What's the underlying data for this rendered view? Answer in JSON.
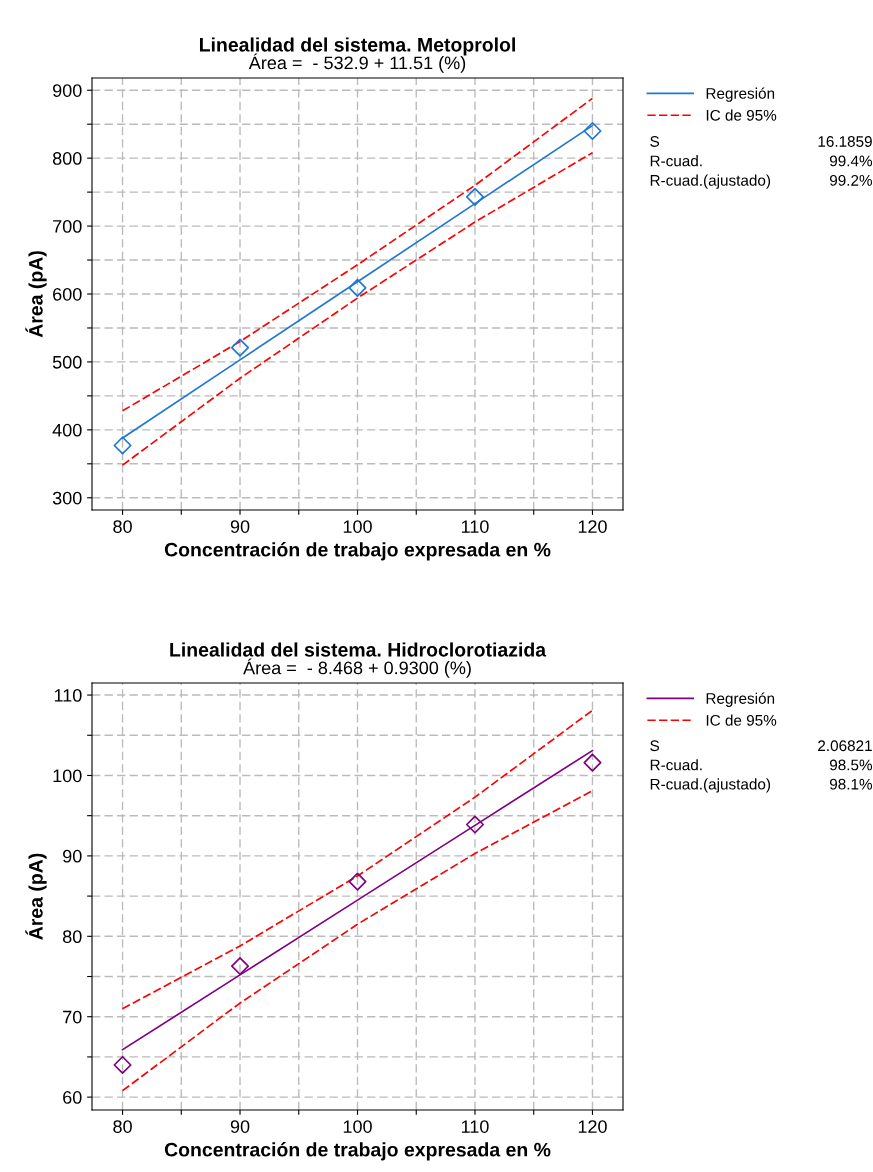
{
  "chart_data": [
    {
      "type": "line",
      "title": "Linealidad del sistema. Metoprolol",
      "subtitle": "Área =  - 532.9 + 11.51 (%)",
      "xlabel": "Concentración de trabajo expresada en %",
      "ylabel": "Área (pA)",
      "x": [
        80,
        90,
        100,
        110,
        120
      ],
      "series": [
        {
          "type": "scatter",
          "marker": "diamond",
          "color": "#1f77d0",
          "values": [
            377,
            521,
            609,
            743,
            840
          ]
        },
        {
          "name": "Regresión",
          "color": "#1f77d0",
          "line_style": "solid",
          "values": [
            388,
            503,
            618,
            733,
            848
          ]
        },
        {
          "name": "IC de 95%",
          "color": "#ff0000",
          "line_style": "dashed",
          "values": [
            428,
            530,
            643,
            760,
            888
          ]
        },
        {
          "color": "#ff0000",
          "line_style": "dashed",
          "values": [
            348,
            476,
            594,
            706,
            808
          ]
        }
      ],
      "xlim": [
        77.4,
        122.6
      ],
      "ylim": [
        282,
        918
      ],
      "xticks": [
        80,
        {
          "value": 85,
          "label": null
        },
        90,
        {
          "value": 95,
          "label": null
        },
        100,
        {
          "value": 105,
          "label": null
        },
        110,
        {
          "value": 115,
          "label": null
        },
        120
      ],
      "yticks": [
        300,
        {
          "value": 350,
          "label": null
        },
        400,
        {
          "value": 450,
          "label": null
        },
        500,
        {
          "value": 550,
          "label": null
        },
        600,
        {
          "value": 650,
          "label": null
        },
        700,
        {
          "value": 750,
          "label": null
        },
        800,
        {
          "value": 850,
          "label": null
        },
        900
      ],
      "grid": true,
      "legend": "right",
      "annotations": [
        "S",
        "16.1859",
        "R-cuad.",
        "99.4%",
        "R-cuad.(ajustado)",
        "99.2%"
      ]
    },
    {
      "type": "line",
      "title": "Linealidad del sistema. Hidroclorotiazida",
      "subtitle": "Área =  - 8.468 + 0.9300 (%)",
      "xlabel": "Concentración de trabajo expresada en %",
      "ylabel": "Área (pA)",
      "x": [
        80,
        90,
        100,
        110,
        120
      ],
      "series": [
        {
          "type": "scatter",
          "marker": "diamond",
          "color": "#800080",
          "values": [
            64,
            76.3,
            86.8,
            93.9,
            101.6
          ]
        },
        {
          "name": "Regresión",
          "color": "#800080",
          "line_style": "solid",
          "values": [
            65.9,
            75.2,
            84.5,
            93.8,
            103.1
          ]
        },
        {
          "name": "IC de 95%",
          "color": "#ff0000",
          "line_style": "dashed",
          "values": [
            71,
            78.8,
            87.5,
            97.3,
            108.1
          ]
        },
        {
          "color": "#ff0000",
          "line_style": "dashed",
          "values": [
            60.8,
            71.7,
            81.5,
            90.3,
            98.1
          ]
        }
      ],
      "xlim": [
        77.4,
        122.6
      ],
      "ylim": [
        58.4,
        111.5
      ],
      "xticks": [
        80,
        {
          "value": 85,
          "label": null
        },
        90,
        {
          "value": 95,
          "label": null
        },
        100,
        {
          "value": 105,
          "label": null
        },
        110,
        {
          "value": 115,
          "label": null
        },
        120
      ],
      "yticks": [
        60,
        {
          "value": 65,
          "label": null
        },
        70,
        {
          "value": 75,
          "label": null
        },
        80,
        {
          "value": 85,
          "label": null
        },
        90,
        {
          "value": 95,
          "label": null
        },
        100,
        {
          "value": 105,
          "label": null
        },
        110
      ],
      "grid": true,
      "legend": "right",
      "annotations": [
        "S",
        "2.06821",
        "R-cuad.",
        "98.5%",
        "R-cuad.(ajustado)",
        "98.1%"
      ]
    }
  ]
}
